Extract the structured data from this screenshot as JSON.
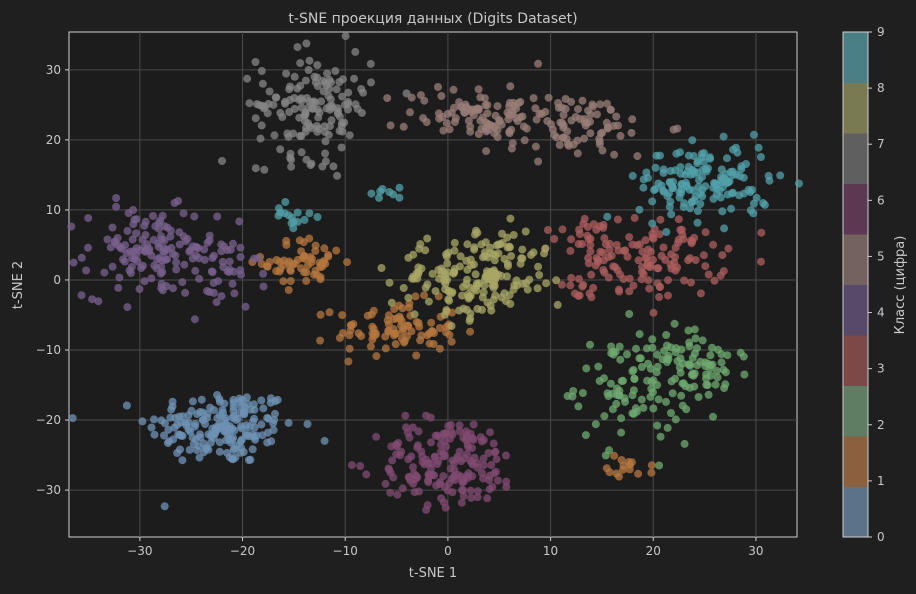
{
  "chart_data": {
    "type": "scatter",
    "title": "t-SNE проекция данных (Digits Dataset)",
    "xlabel": "t-SNE 1",
    "ylabel": "t-SNE 2",
    "xlim": [
      -36.9,
      34.0
    ],
    "ylim": [
      -36.7,
      35.4
    ],
    "xticks": [
      -30,
      -20,
      -10,
      0,
      10,
      20,
      30
    ],
    "yticks": [
      -30,
      -20,
      -10,
      0,
      10,
      20,
      30
    ],
    "grid": true,
    "colorbar": {
      "label": "Класс (цифра)",
      "ticks": [
        0,
        1,
        2,
        3,
        4,
        5,
        6,
        7,
        8,
        9
      ],
      "range": [
        0,
        9
      ],
      "colors": [
        "#5b7389",
        "#8a603f",
        "#5f7d63",
        "#7d4848",
        "#574a69",
        "#73625e",
        "#5c3852",
        "#5f5f5f",
        "#7a7a52",
        "#4b7f86"
      ]
    },
    "point_colors": [
      "#6f93b5",
      "#b5773f",
      "#6faa70",
      "#ae5e5e",
      "#7a628f",
      "#9a7d78",
      "#824b72",
      "#858585",
      "#a8a765",
      "#52a0aa"
    ],
    "point_alpha": 0.75,
    "note_points": "approximate cluster summary per digit class: center [x,y], spread [sx,sy], count n",
    "clusters": [
      {
        "class": 0,
        "center": [
          -22,
          -21
        ],
        "spread": [
          3.6,
          2.7
        ],
        "n": 180
      },
      {
        "class": 1,
        "center": [
          -5,
          -7
        ],
        "spread": [
          3.0,
          2.0
        ],
        "n": 90
      },
      {
        "class": 1,
        "center": [
          -14,
          2.5
        ],
        "spread": [
          2.0,
          1.7
        ],
        "n": 60
      },
      {
        "class": 1,
        "center": [
          18,
          -26.5
        ],
        "spread": [
          1.2,
          0.8
        ],
        "n": 15
      },
      {
        "class": 2,
        "center": [
          18,
          -15
        ],
        "spread": [
          2.8,
          4.0
        ],
        "n": 100
      },
      {
        "class": 2,
        "center": [
          25,
          -13
        ],
        "spread": [
          2.2,
          2.2
        ],
        "n": 60
      },
      {
        "class": 3,
        "center": [
          20,
          3
        ],
        "spread": [
          3.5,
          2.8
        ],
        "n": 110
      },
      {
        "class": 3,
        "center": [
          14,
          6
        ],
        "spread": [
          1.8,
          1.8
        ],
        "n": 30
      },
      {
        "class": 3,
        "center": [
          13,
          -1.5
        ],
        "spread": [
          0.9,
          0.5
        ],
        "n": 8
      },
      {
        "class": 4,
        "center": [
          -29,
          4
        ],
        "spread": [
          3.2,
          3.2
        ],
        "n": 130
      },
      {
        "class": 4,
        "center": [
          -22,
          1
        ],
        "spread": [
          1.8,
          3.0
        ],
        "n": 40
      },
      {
        "class": 5,
        "center": [
          3,
          24
        ],
        "spread": [
          3.5,
          2.0
        ],
        "n": 80
      },
      {
        "class": 5,
        "center": [
          12,
          22
        ],
        "spread": [
          4.5,
          2.3
        ],
        "n": 90
      },
      {
        "class": 6,
        "center": [
          0,
          -26
        ],
        "spread": [
          3.5,
          3.2
        ],
        "n": 170
      },
      {
        "class": 7,
        "center": [
          -13,
          25
        ],
        "spread": [
          2.8,
          3.8
        ],
        "n": 150
      },
      {
        "class": 8,
        "center": [
          2,
          0
        ],
        "spread": [
          3.8,
          2.8
        ],
        "n": 150
      },
      {
        "class": 8,
        "center": [
          5,
          4
        ],
        "spread": [
          1.8,
          1.8
        ],
        "n": 30
      },
      {
        "class": 9,
        "center": [
          25,
          14
        ],
        "spread": [
          3.2,
          2.7
        ],
        "n": 150
      },
      {
        "class": 9,
        "center": [
          -15,
          9
        ],
        "spread": [
          0.9,
          0.9
        ],
        "n": 15
      },
      {
        "class": 9,
        "center": [
          -6,
          12.5
        ],
        "spread": [
          1.0,
          0.4
        ],
        "n": 8
      }
    ]
  }
}
